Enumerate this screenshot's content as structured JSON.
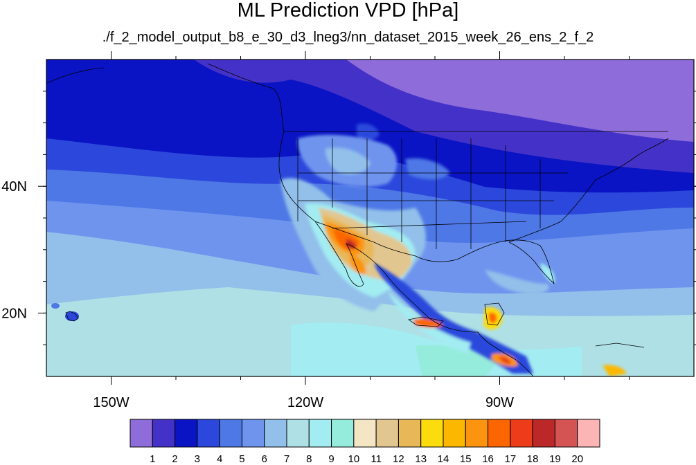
{
  "title": "ML Prediction VPD [hPa]",
  "subtitle": "./f_2_model_output_b8_e_30_d3_lneg3/nn_dataset_2015_week_26_ens_2_f_2",
  "map": {
    "lon_range": [
      -160,
      -60
    ],
    "lat_range": [
      10,
      60
    ],
    "lat_ticks": [
      {
        "value": 40,
        "label": "40N"
      },
      {
        "value": 20,
        "label": "20N"
      }
    ],
    "lon_ticks": [
      {
        "value": -150,
        "label": "150W"
      },
      {
        "value": -120,
        "label": "120W"
      },
      {
        "value": -90,
        "label": "90W"
      }
    ]
  },
  "colorbar": {
    "labels": [
      "1",
      "2",
      "3",
      "4",
      "5",
      "6",
      "7",
      "8",
      "9",
      "10",
      "11",
      "12",
      "13",
      "14",
      "15",
      "16",
      "17",
      "18",
      "19",
      "20"
    ],
    "colors": [
      "#8e6cda",
      "#4432c8",
      "#0a14c4",
      "#2c48dc",
      "#4e78e6",
      "#6e94ee",
      "#92c0ea",
      "#aee0e6",
      "#a2ecf2",
      "#96ecdc",
      "#f4e6c4",
      "#e2c690",
      "#e8b858",
      "#fcdc0c",
      "#fcb800",
      "#fc9410",
      "#fc6600",
      "#ec3c1a",
      "#bc2828",
      "#d45454",
      "#fcb4b4"
    ]
  }
}
